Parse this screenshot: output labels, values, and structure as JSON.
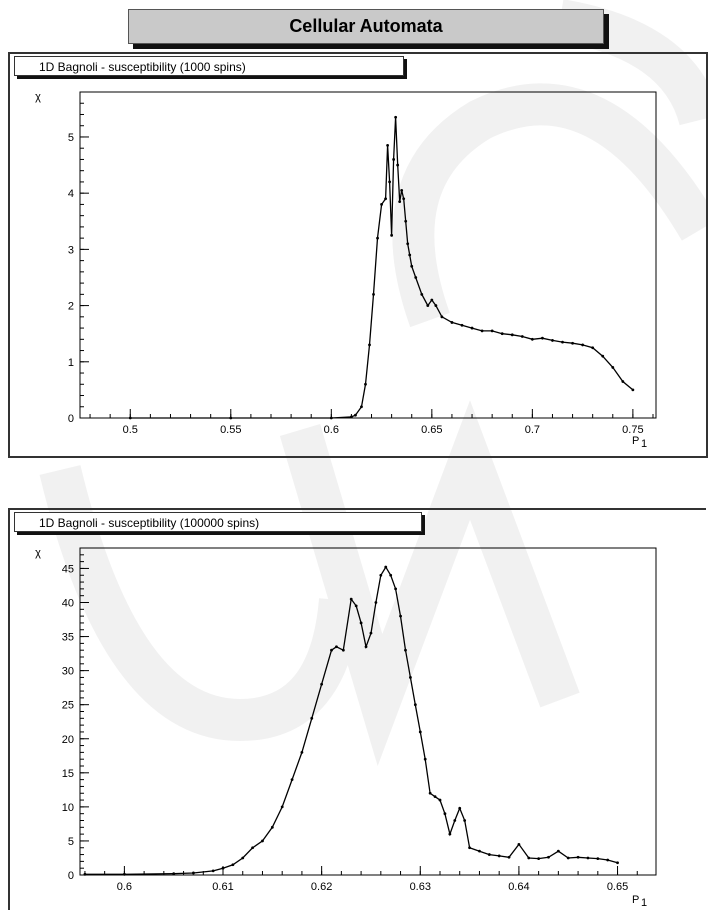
{
  "page": {
    "title": "Cellular Automata"
  },
  "chart_data": [
    {
      "type": "line",
      "title": "1D Bagnoli - susceptibility (1000 spins)",
      "xlabel": "P",
      "xlabel_sub": "1",
      "ylabel": "χ",
      "xlim": [
        0.475,
        0.7615
      ],
      "ylim": [
        0,
        5.8
      ],
      "xticks": [
        0.5,
        0.55,
        0.6,
        0.65,
        0.7,
        0.75
      ],
      "xtick_labels": [
        "0.5",
        "0.55",
        "0.6",
        "0.65",
        "0.7",
        "0.75"
      ],
      "yticks": [
        0,
        1,
        2,
        3,
        4,
        5
      ],
      "ytick_labels": [
        "0",
        "1",
        "2",
        "3",
        "4",
        "5"
      ],
      "grid": false,
      "series": [
        {
          "x": [
            0.5,
            0.55,
            0.6,
            0.61,
            0.612,
            0.615,
            0.617,
            0.619,
            0.621,
            0.623,
            0.625,
            0.627,
            0.628,
            0.629,
            0.63,
            0.631,
            0.632,
            0.633,
            0.634,
            0.635,
            0.636,
            0.637,
            0.638,
            0.639,
            0.64,
            0.642,
            0.645,
            0.648,
            0.65,
            0.652,
            0.655,
            0.66,
            0.665,
            0.67,
            0.675,
            0.68,
            0.685,
            0.69,
            0.695,
            0.7,
            0.705,
            0.71,
            0.715,
            0.72,
            0.725,
            0.73,
            0.735,
            0.74,
            0.745,
            0.75
          ],
          "y": [
            0,
            0,
            0,
            0.02,
            0.05,
            0.2,
            0.6,
            1.3,
            2.2,
            3.2,
            3.8,
            3.9,
            4.85,
            4.2,
            3.25,
            4.6,
            5.35,
            4.5,
            3.85,
            4.05,
            3.9,
            3.5,
            3.1,
            2.9,
            2.7,
            2.5,
            2.2,
            2.0,
            2.1,
            2.0,
            1.8,
            1.7,
            1.65,
            1.6,
            1.55,
            1.55,
            1.5,
            1.48,
            1.45,
            1.4,
            1.42,
            1.38,
            1.35,
            1.33,
            1.3,
            1.25,
            1.1,
            0.9,
            0.65,
            0.5
          ]
        }
      ]
    },
    {
      "type": "line",
      "title": "1D Bagnoli - susceptibility (100000 spins)",
      "xlabel": "P",
      "xlabel_sub": "1",
      "ylabel": "χ",
      "xlim": [
        0.5955,
        0.6539
      ],
      "ylim": [
        0,
        48
      ],
      "xticks": [
        0.6,
        0.61,
        0.62,
        0.63,
        0.64,
        0.65
      ],
      "xtick_labels": [
        "0.6",
        "0.61",
        "0.62",
        "0.63",
        "0.64",
        "0.65"
      ],
      "yticks": [
        0,
        5,
        10,
        15,
        20,
        25,
        30,
        35,
        40,
        45
      ],
      "ytick_labels": [
        "0",
        "5",
        "10",
        "15",
        "20",
        "25",
        "30",
        "35",
        "40",
        "45"
      ],
      "grid": false,
      "series": [
        {
          "x": [
            0.596,
            0.6,
            0.605,
            0.607,
            0.609,
            0.61,
            0.611,
            0.612,
            0.613,
            0.614,
            0.615,
            0.616,
            0.617,
            0.618,
            0.619,
            0.62,
            0.621,
            0.6215,
            0.6222,
            0.623,
            0.6235,
            0.624,
            0.6245,
            0.625,
            0.6255,
            0.626,
            0.6265,
            0.627,
            0.6275,
            0.628,
            0.6285,
            0.629,
            0.6295,
            0.63,
            0.6305,
            0.631,
            0.6315,
            0.632,
            0.6325,
            0.633,
            0.6335,
            0.634,
            0.6345,
            0.635,
            0.636,
            0.637,
            0.638,
            0.639,
            0.64,
            0.641,
            0.642,
            0.643,
            0.644,
            0.645,
            0.646,
            0.647,
            0.648,
            0.649,
            0.65
          ],
          "y": [
            0.1,
            0.1,
            0.2,
            0.3,
            0.6,
            1.0,
            1.5,
            2.5,
            4.0,
            5.0,
            7.0,
            10.0,
            14.0,
            18.0,
            23.0,
            28.0,
            33.0,
            33.5,
            33.0,
            40.5,
            39.5,
            37.0,
            33.5,
            35.5,
            40.0,
            44.0,
            45.2,
            44.0,
            42.0,
            38.0,
            33.0,
            29.0,
            25.0,
            21.0,
            17.0,
            12.0,
            11.5,
            11.0,
            9.0,
            6.0,
            8.0,
            9.8,
            8.0,
            4.0,
            3.5,
            3.0,
            2.8,
            2.6,
            4.5,
            2.5,
            2.4,
            2.6,
            3.5,
            2.5,
            2.6,
            2.5,
            2.4,
            2.2,
            1.8
          ]
        }
      ]
    }
  ]
}
